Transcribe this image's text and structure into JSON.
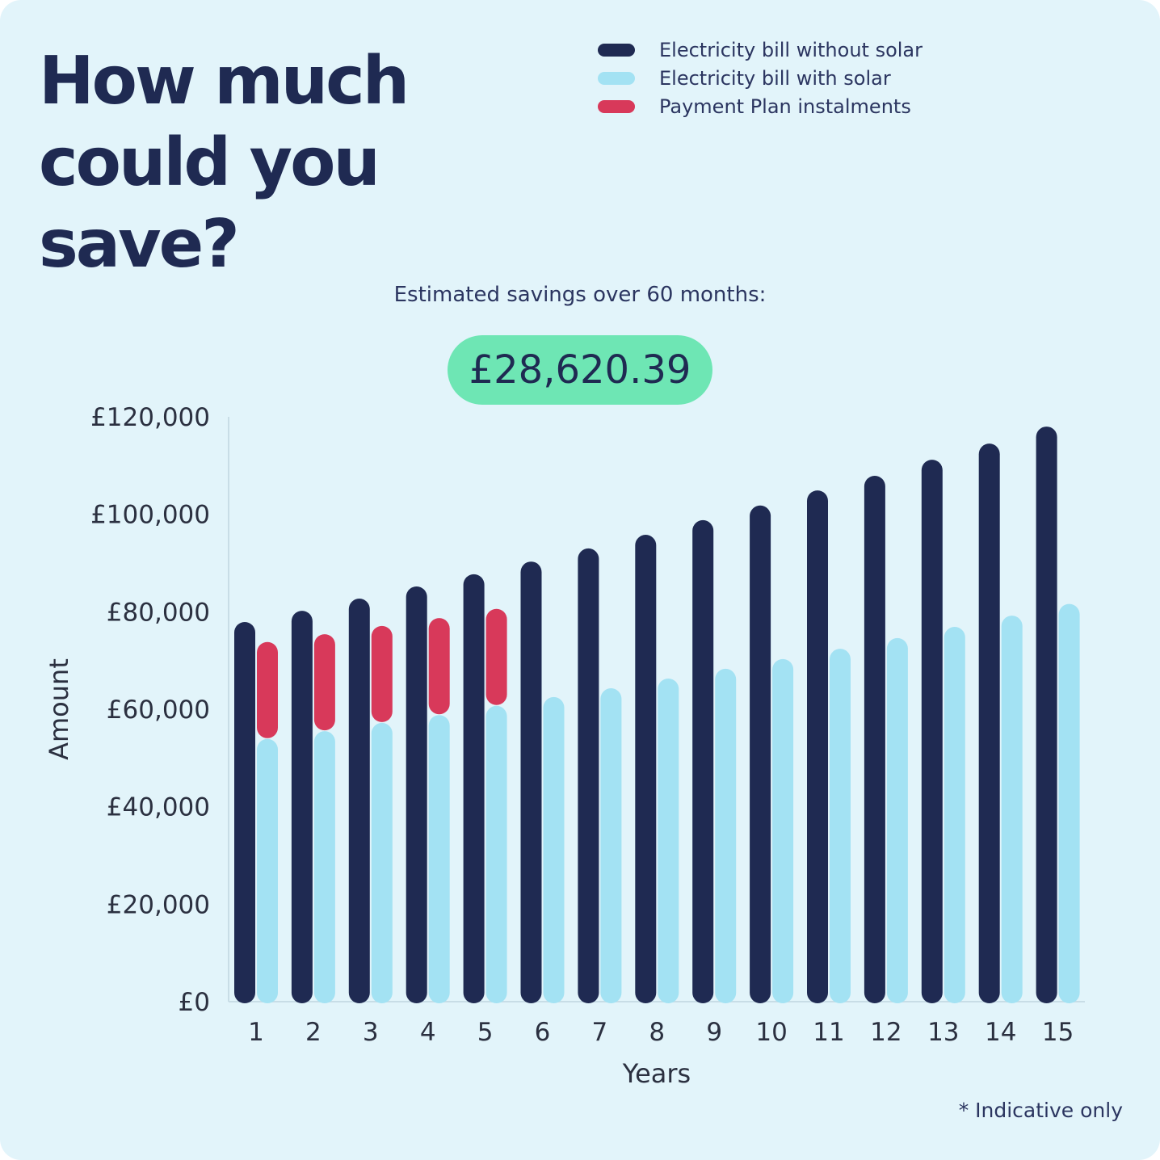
{
  "title": "How much could you save?",
  "subtitle": "Estimated savings over 60 months:",
  "savings_value": "£28,620.39",
  "footnote": "* Indicative only",
  "colors": {
    "background": "#e2f4fa",
    "without_solar": "#1f2a52",
    "with_solar": "#a3e2f3",
    "instalments": "#d8395a",
    "pill": "#6ee6b4"
  },
  "chart_data": {
    "type": "bar",
    "xlabel": "Years",
    "ylabel": "Amount",
    "ylim": [
      0,
      120000
    ],
    "yticks": [
      "£0",
      "£20,000",
      "£40,000",
      "£60,000",
      "£80,000",
      "£100,000",
      "£120,000"
    ],
    "ytick_values": [
      0,
      20000,
      40000,
      60000,
      80000,
      100000,
      120000
    ],
    "categories": [
      "1",
      "2",
      "3",
      "4",
      "5",
      "6",
      "7",
      "8",
      "9",
      "10",
      "11",
      "12",
      "13",
      "14",
      "15"
    ],
    "legend_position": "top-right",
    "grid": false,
    "series": [
      {
        "name": "Electricity bill without solar",
        "stack": "a",
        "values": [
          77900,
          80200,
          82700,
          85200,
          87700,
          90300,
          93000,
          95800,
          98800,
          101800,
          104900,
          107900,
          111200,
          114500,
          118000
        ]
      },
      {
        "name": "Electricity bill with solar",
        "stack": "b",
        "values": [
          53900,
          55500,
          57200,
          58800,
          60700,
          62500,
          64300,
          66300,
          68300,
          70300,
          72400,
          74600,
          76900,
          79200,
          81600
        ]
      },
      {
        "name": "Payment Plan instalments",
        "stack": "b",
        "values": [
          19900,
          19900,
          19900,
          19900,
          19900,
          null,
          null,
          null,
          null,
          null,
          null,
          null,
          null,
          null,
          null
        ]
      }
    ]
  }
}
